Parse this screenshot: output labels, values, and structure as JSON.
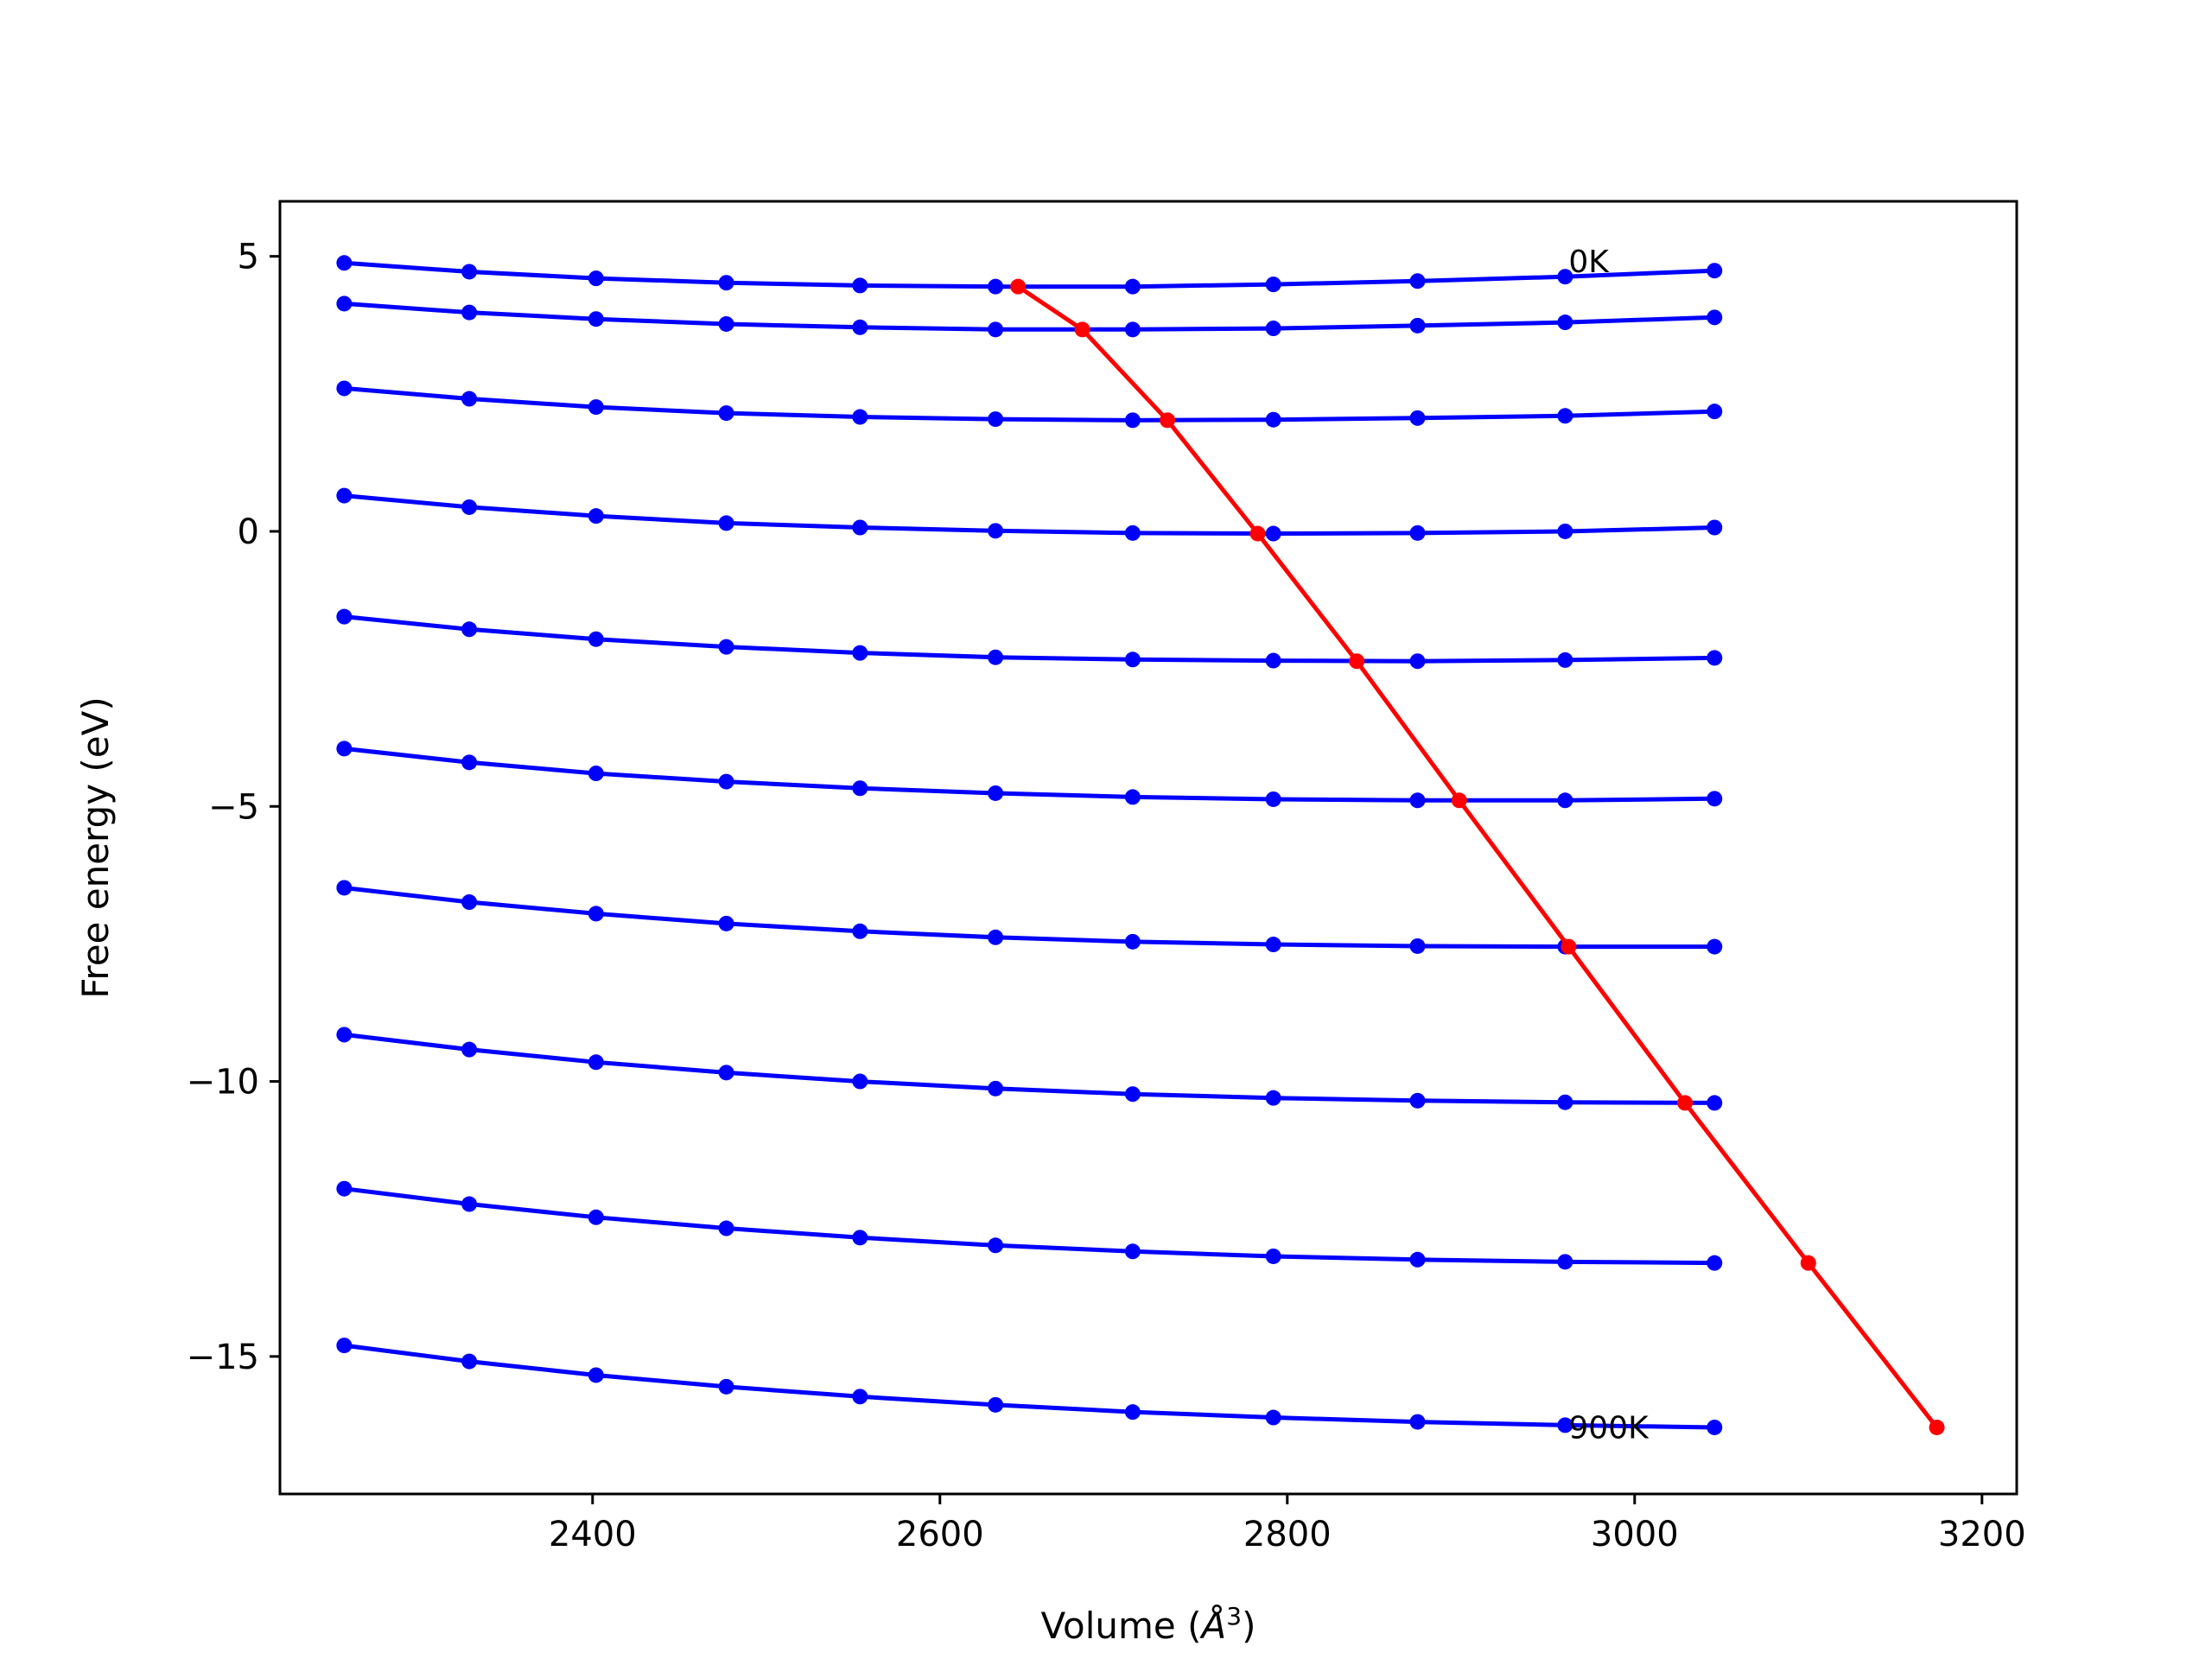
{
  "chart_data": {
    "type": "line",
    "title": "",
    "xlabel": "Volume",
    "xlabel_unit_base": "Å",
    "xlabel_unit_exp": "3",
    "ylabel": "Free energy (eV)",
    "xlim": [
      2220,
      3220
    ],
    "ylim": [
      -17.5,
      6.0
    ],
    "xticks": [
      2400,
      2600,
      2800,
      3000,
      3200
    ],
    "xtick_labels": [
      "2400",
      "2600",
      "2800",
      "3000",
      "3200"
    ],
    "yticks": [
      5,
      0,
      -5,
      -10,
      -15
    ],
    "ytick_labels": [
      "5",
      "0",
      "−5",
      "−10",
      "−15"
    ],
    "grid": false,
    "legend": "none",
    "annotations": [
      {
        "text": "0K",
        "x": 2962,
        "y": 4.9
      },
      {
        "text": "900K",
        "x": 2962,
        "y": -16.3
      }
    ],
    "colors": {
      "isotherms": "#0000ff",
      "minimum": "#ff0000"
    },
    "x": [
      2257,
      2329,
      2402,
      2477,
      2554,
      2632,
      2711,
      2792,
      2875,
      2960,
      3046
    ],
    "series": [
      {
        "values": [
          4.88,
          4.72,
          4.6,
          4.52,
          4.47,
          4.45,
          4.45,
          4.49,
          4.55,
          4.63,
          4.74
        ]
      },
      {
        "values": [
          4.14,
          3.98,
          3.86,
          3.77,
          3.71,
          3.67,
          3.67,
          3.69,
          3.74,
          3.8,
          3.89
        ]
      },
      {
        "values": [
          2.6,
          2.41,
          2.26,
          2.15,
          2.08,
          2.04,
          2.02,
          2.03,
          2.06,
          2.1,
          2.18
        ]
      },
      {
        "values": [
          0.65,
          0.44,
          0.28,
          0.15,
          0.07,
          0.01,
          -0.03,
          -0.04,
          -0.03,
          0.0,
          0.07
        ]
      },
      {
        "values": [
          -1.55,
          -1.78,
          -1.96,
          -2.1,
          -2.21,
          -2.29,
          -2.33,
          -2.35,
          -2.36,
          -2.34,
          -2.3
        ]
      },
      {
        "values": [
          -3.95,
          -4.2,
          -4.4,
          -4.55,
          -4.67,
          -4.76,
          -4.83,
          -4.87,
          -4.89,
          -4.89,
          -4.86
        ]
      },
      {
        "values": [
          -6.48,
          -6.74,
          -6.95,
          -7.13,
          -7.27,
          -7.38,
          -7.46,
          -7.51,
          -7.54,
          -7.55,
          -7.55
        ]
      },
      {
        "values": [
          -9.15,
          -9.42,
          -9.65,
          -9.84,
          -10.0,
          -10.13,
          -10.23,
          -10.3,
          -10.35,
          -10.38,
          -10.39
        ]
      },
      {
        "values": [
          -11.95,
          -12.23,
          -12.47,
          -12.67,
          -12.84,
          -12.98,
          -13.09,
          -13.18,
          -13.24,
          -13.28,
          -13.3
        ]
      },
      {
        "values": [
          -14.8,
          -15.09,
          -15.34,
          -15.55,
          -15.73,
          -15.88,
          -16.01,
          -16.11,
          -16.19,
          -16.25,
          -16.29
        ]
      }
    ],
    "minimum_curve": {
      "x": [
        2645,
        2682,
        2731,
        2783,
        2840,
        2899,
        2962,
        3029,
        3100,
        3174
      ],
      "y": [
        4.45,
        3.67,
        2.02,
        -0.04,
        -2.36,
        -4.89,
        -7.55,
        -10.39,
        -13.3,
        -16.29
      ]
    }
  }
}
